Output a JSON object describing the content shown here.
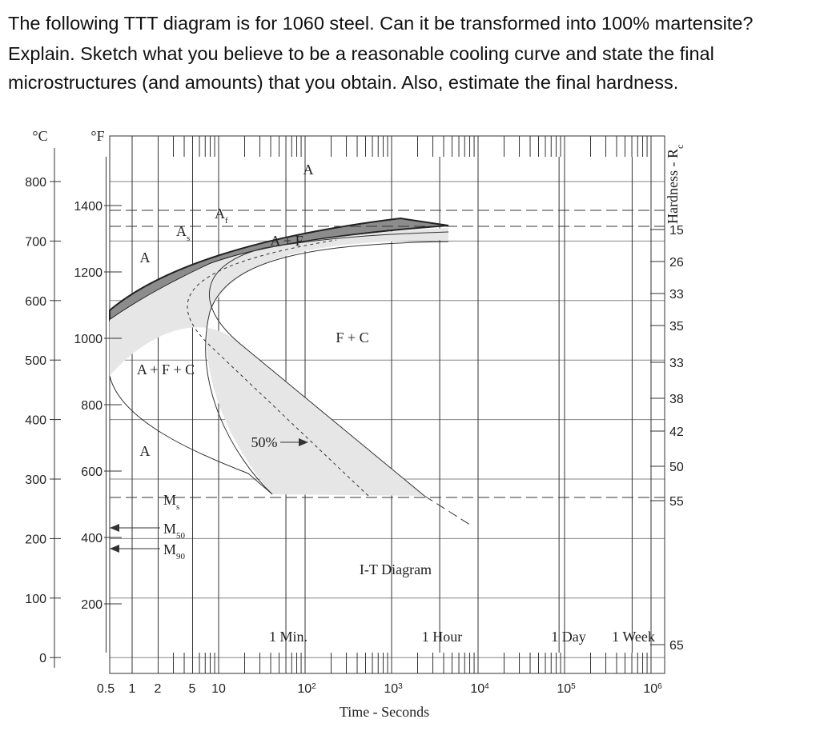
{
  "question": {
    "lines": [
      "The following TTT diagram is for 1060 steel. Can it be transformed into 100% martensite?",
      "Explain. Sketch what you believe to be a reasonable cooling curve and state the final",
      "microstructures (and amounts) that you obtain. Also, estimate the final hardness."
    ]
  },
  "diagram": {
    "celsius_unit": "°C",
    "fahrenheit_unit": "°F",
    "celsius_ticks": [
      "800",
      "700",
      "600",
      "500",
      "400",
      "300",
      "200",
      "100",
      "0"
    ],
    "fahrenheit_ticks": [
      "1400",
      "1200",
      "1000",
      "800",
      "600",
      "400",
      "200"
    ],
    "hardness_title": {
      "text": "Hardness - R",
      "sub": "c"
    },
    "hardness_values": [
      "15",
      "26",
      "33",
      "35",
      "33",
      "38",
      "42",
      "50",
      "55",
      "65"
    ],
    "time_ticks_linear": [
      "0.5",
      "1",
      "2",
      "5",
      "10"
    ],
    "time_ticks_power": [
      {
        "base": "10",
        "exp": "2"
      },
      {
        "base": "10",
        "exp": "3"
      },
      {
        "base": "10",
        "exp": "4"
      },
      {
        "base": "10",
        "exp": "5"
      },
      {
        "base": "10",
        "exp": "6"
      }
    ],
    "time_title": "Time - Seconds",
    "time_markers": [
      "1 Min.",
      "1 Hour",
      "1 Day",
      "1 Week"
    ],
    "title": "I-T Diagram",
    "regions": [
      "A",
      "A + F",
      "A",
      "F + C",
      "A + F + C",
      "A",
      "50%"
    ],
    "phases": [
      {
        "text": "A",
        "sub": "f"
      },
      {
        "text": "A",
        "sub": "s"
      },
      {
        "text": "M",
        "sub": "s"
      },
      {
        "text": "M",
        "sub": "50"
      },
      {
        "text": "M",
        "sub": "90"
      }
    ]
  }
}
